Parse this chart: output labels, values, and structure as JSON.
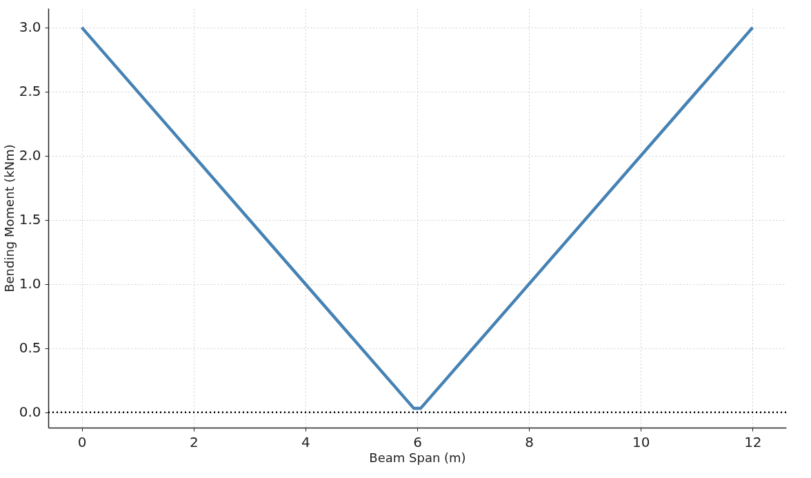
{
  "chart_data": {
    "type": "line",
    "xlabel": "Beam Span (m)",
    "ylabel": "Bending Moment (kNm)",
    "x": [
      0,
      5.94,
      6.06,
      12
    ],
    "series": [
      {
        "color": "#4682b4",
        "values": [
          3.0,
          0.03,
          0.03,
          3.0
        ]
      }
    ],
    "xlim": [
      -0.6,
      12.6
    ],
    "xticks": [
      0,
      2,
      4,
      6,
      8,
      10,
      12
    ],
    "ylim": [
      -0.12,
      3.15
    ],
    "yticks": [
      {
        "value": 0,
        "label": "0.0"
      },
      0.5,
      {
        "value": 1,
        "label": "1.0"
      },
      1.5,
      {
        "value": 2,
        "label": "2.0"
      },
      2.5,
      {
        "value": 3,
        "label": "3.0"
      }
    ],
    "ref_lines": [
      {
        "axis": "y",
        "value": 0,
        "color": "#000000",
        "line_style": "dotted"
      }
    ],
    "grid": true,
    "marker": "none",
    "line_style": "solid"
  }
}
